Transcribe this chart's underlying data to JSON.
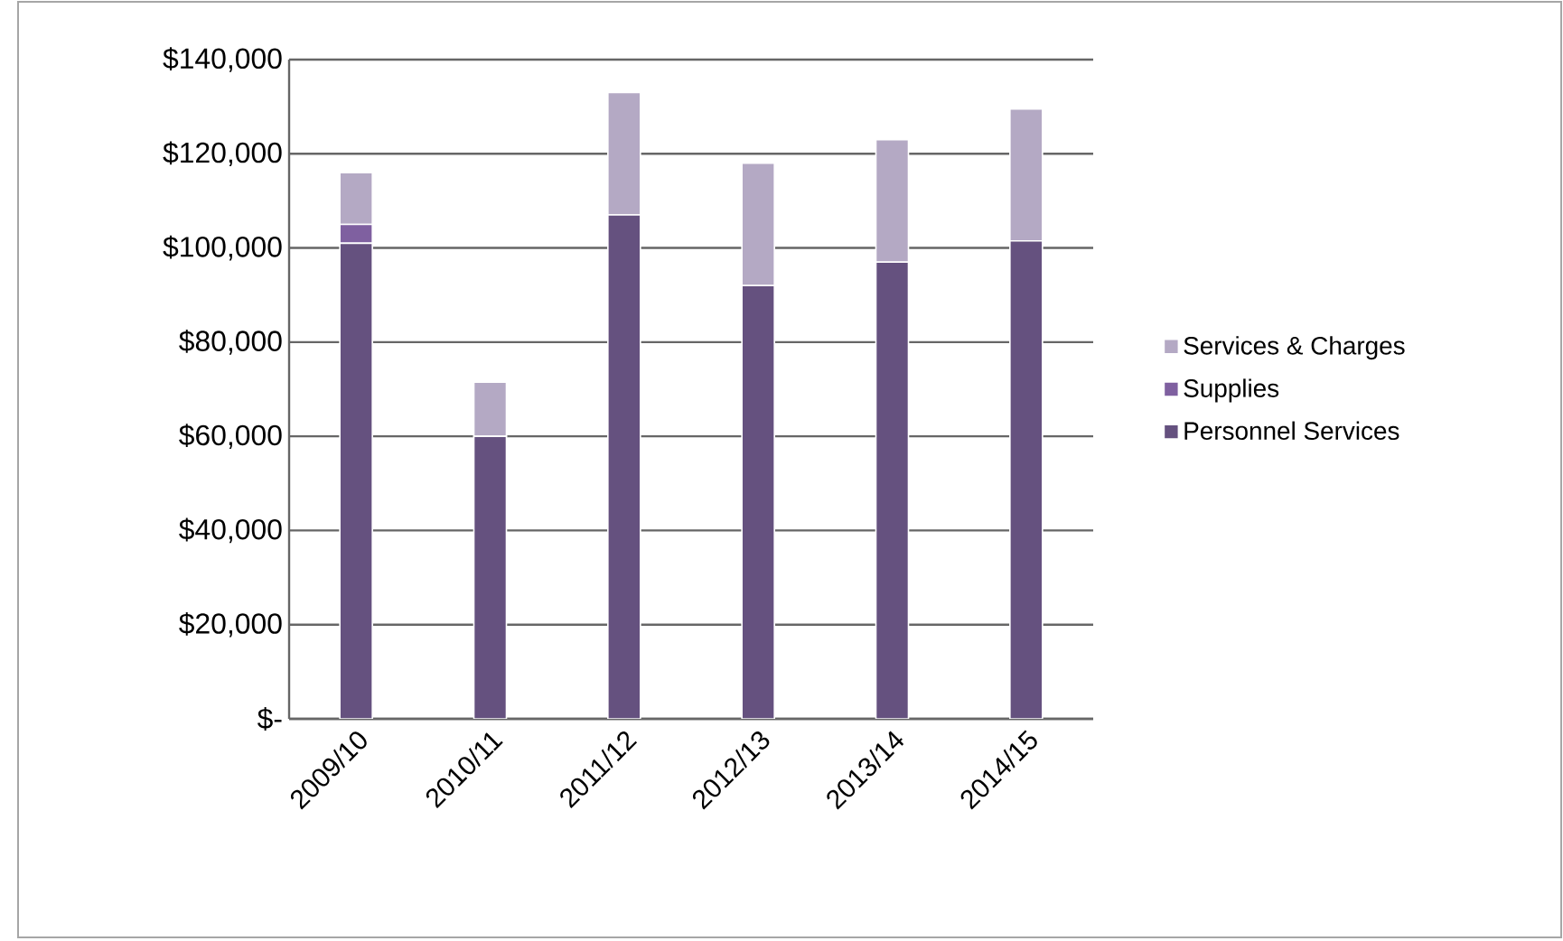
{
  "chart_data": {
    "type": "bar",
    "stacked": true,
    "categories": [
      "2009/10",
      "2010/11",
      "2011/12",
      "2012/13",
      "2013/14",
      "2014/15"
    ],
    "series": [
      {
        "name": "Personnel Services",
        "color": "#65517f",
        "values": [
          101000,
          60000,
          107000,
          92000,
          97000,
          101500
        ]
      },
      {
        "name": "Supplies",
        "color": "#7f60a0",
        "values": [
          4000,
          0,
          0,
          0,
          0,
          0
        ]
      },
      {
        "name": "Services & Charges",
        "color": "#b4a9c4",
        "values": [
          11000,
          11500,
          26000,
          26000,
          26000,
          28000
        ]
      }
    ],
    "ylim": [
      0,
      140000
    ],
    "yticks": [
      {
        "value": 0,
        "label": "$-"
      },
      {
        "value": 20000,
        "label": "$20,000"
      },
      {
        "value": 40000,
        "label": "$40,000"
      },
      {
        "value": 60000,
        "label": "$60,000"
      },
      {
        "value": 80000,
        "label": "$80,000"
      },
      {
        "value": 100000,
        "label": "$100,000"
      },
      {
        "value": 120000,
        "label": "$120,000"
      },
      {
        "value": 140000,
        "label": "$140,000"
      }
    ],
    "grid": "y",
    "legend": "right"
  }
}
